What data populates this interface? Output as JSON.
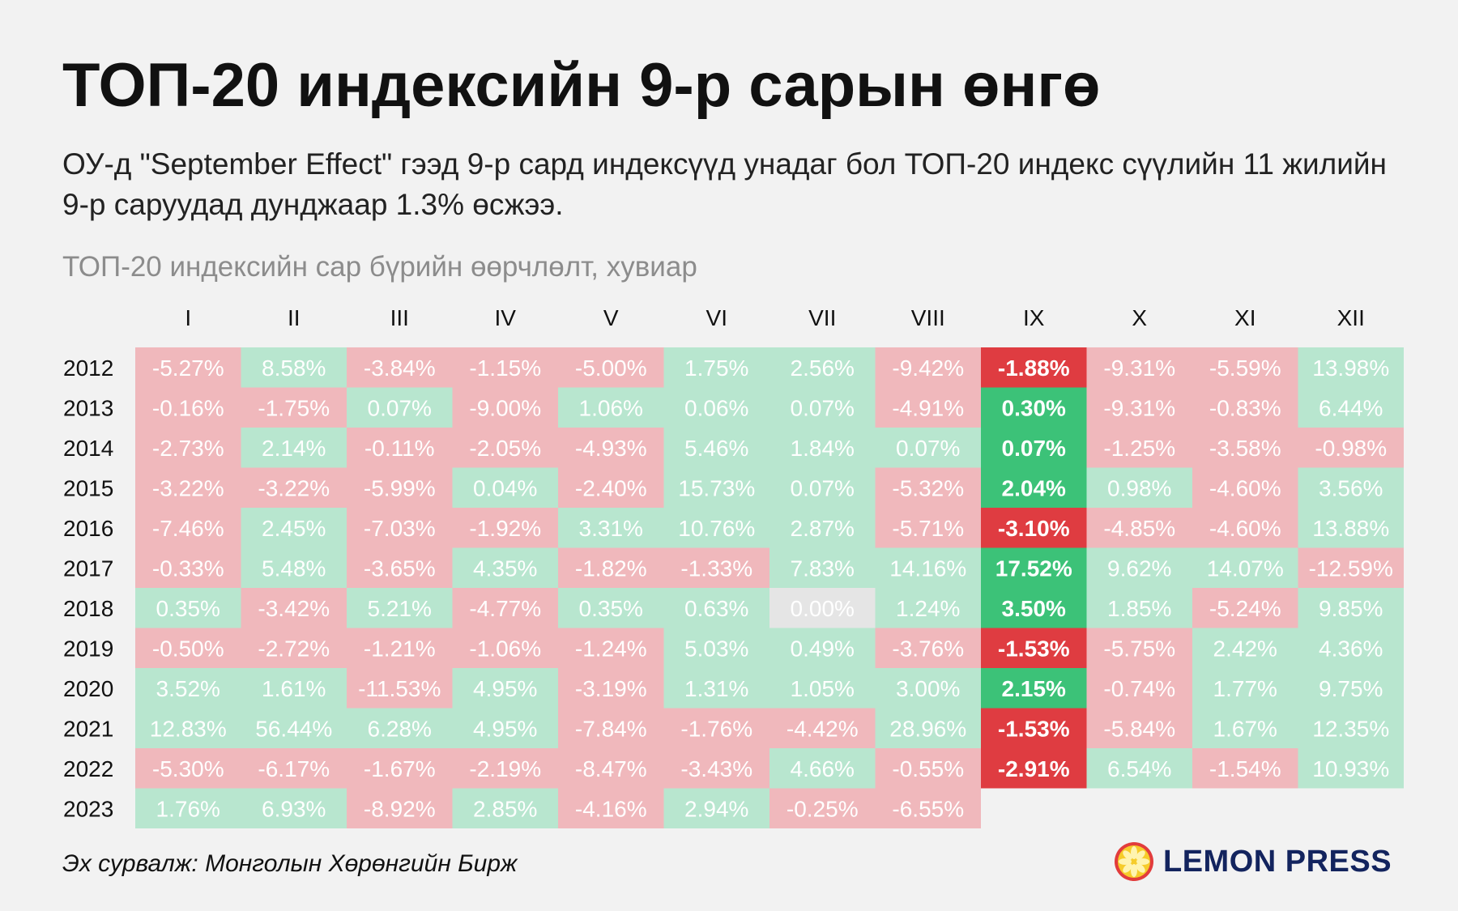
{
  "title": "ТОП-20 индексийн 9-р сарын өнгө",
  "subtitle": "ОУ-д \"September Effect\" гээд 9-р сард индексүүд унадаг бол ТОП-20 индекс сүүлийн 11 жилийн 9-р саруудад дунджаар 1.3% өсжээ.",
  "source": "Эх сурвалж: Монголын Хөрөнгийн Бирж",
  "logo": {
    "text": "LEMON PRESS",
    "icon": "lemon-slice-icon"
  },
  "colors": {
    "background": "#f2f2f2",
    "positive": "#b8e6cf",
    "negative": "#f0b8bc",
    "zero": "#e5e5e5",
    "highlight_positive": "#3cc278",
    "highlight_negative": "#df3c41",
    "logo_blue": "#13245e",
    "logo_yellow": "#f6cc2a",
    "logo_red": "#e23c3c"
  },
  "chart_data": {
    "type": "heatmap",
    "title": "ТОП-20 индексийн сар бүрийн өөрчлөлт, хувиар",
    "x_categories": [
      "I",
      "II",
      "III",
      "IV",
      "V",
      "VI",
      "VII",
      "VIII",
      "IX",
      "X",
      "XI",
      "XII"
    ],
    "y_categories": [
      "2012",
      "2013",
      "2014",
      "2015",
      "2016",
      "2017",
      "2018",
      "2019",
      "2020",
      "2021",
      "2022",
      "2023"
    ],
    "highlight_column": "IX",
    "unit": "%",
    "values": [
      [
        -5.27,
        8.58,
        -3.84,
        -1.15,
        -5.0,
        1.75,
        2.56,
        -9.42,
        -1.88,
        -9.31,
        -5.59,
        13.98
      ],
      [
        -0.16,
        -1.75,
        0.07,
        -9.0,
        1.06,
        0.06,
        0.07,
        -4.91,
        0.3,
        -9.31,
        -0.83,
        6.44
      ],
      [
        -2.73,
        2.14,
        -0.11,
        -2.05,
        -4.93,
        5.46,
        1.84,
        0.07,
        0.07,
        -1.25,
        -3.58,
        -0.98
      ],
      [
        -3.22,
        -3.22,
        -5.99,
        0.04,
        -2.4,
        15.73,
        0.07,
        -5.32,
        2.04,
        0.98,
        -4.6,
        3.56
      ],
      [
        -7.46,
        2.45,
        -7.03,
        -1.92,
        3.31,
        10.76,
        2.87,
        -5.71,
        -3.1,
        -4.85,
        -4.6,
        13.88
      ],
      [
        -0.33,
        5.48,
        -3.65,
        4.35,
        -1.82,
        -1.33,
        7.83,
        14.16,
        17.52,
        9.62,
        14.07,
        -12.59
      ],
      [
        0.35,
        -3.42,
        5.21,
        -4.77,
        0.35,
        0.63,
        0.0,
        1.24,
        3.5,
        1.85,
        -5.24,
        9.85
      ],
      [
        -0.5,
        -2.72,
        -1.21,
        -1.06,
        -1.24,
        5.03,
        0.49,
        -3.76,
        -1.53,
        -5.75,
        2.42,
        4.36
      ],
      [
        3.52,
        1.61,
        -11.53,
        4.95,
        -3.19,
        1.31,
        1.05,
        3.0,
        2.15,
        -0.74,
        1.77,
        9.75
      ],
      [
        12.83,
        56.44,
        6.28,
        4.95,
        -7.84,
        -1.76,
        -4.42,
        28.96,
        -1.53,
        -5.84,
        1.67,
        12.35
      ],
      [
        -5.3,
        -6.17,
        -1.67,
        -2.19,
        -8.47,
        -3.43,
        4.66,
        -0.55,
        -2.91,
        6.54,
        -1.54,
        10.93
      ],
      [
        1.76,
        6.93,
        -8.92,
        2.85,
        -4.16,
        2.94,
        -0.25,
        -6.55,
        null,
        null,
        null,
        null
      ]
    ]
  }
}
